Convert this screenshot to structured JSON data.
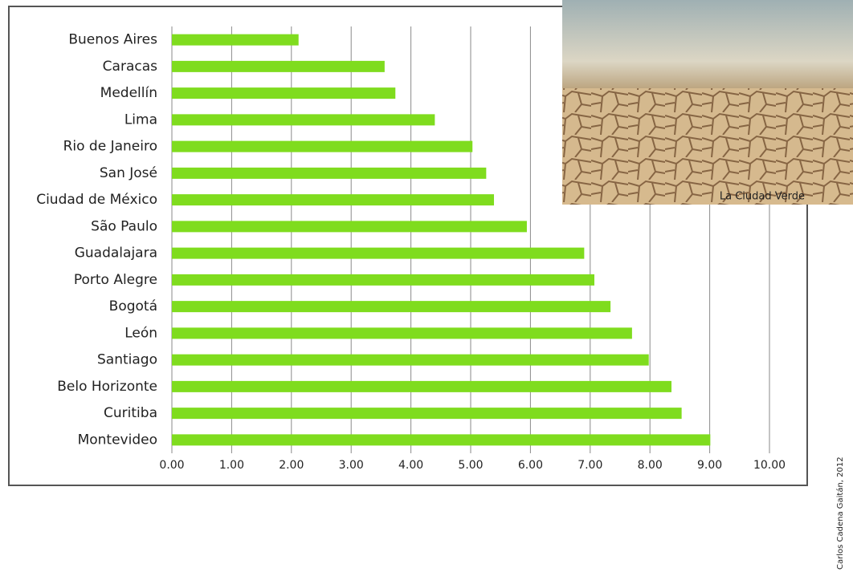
{
  "chart_data": {
    "type": "bar",
    "orientation": "horizontal",
    "categories": [
      "Buenos Aires",
      "Caracas",
      "Medellín",
      "Lima",
      "Rio de Janeiro",
      "San José",
      "Ciudad de México",
      "São Paulo",
      "Guadalajara",
      "Porto Alegre",
      "Bogotá",
      "León",
      "Santiago",
      "Belo Horizonte",
      "Curitiba",
      "Montevideo"
    ],
    "values": [
      2.12,
      3.56,
      3.74,
      4.4,
      5.03,
      5.26,
      5.39,
      5.94,
      6.9,
      7.07,
      7.34,
      7.7,
      7.98,
      8.36,
      8.53,
      9.01
    ],
    "color": "#7fdc1e",
    "xlim": [
      0,
      10
    ],
    "xticks": [
      {
        "value": 0,
        "label": "0.00"
      },
      {
        "value": 1,
        "label": "1.00"
      },
      {
        "value": 2,
        "label": "2.00"
      },
      {
        "value": 3,
        "label": "3.00"
      },
      {
        "value": 4,
        "label": "4.00"
      },
      {
        "value": 5,
        "label": "5.00"
      },
      {
        "value": 6,
        "label": "6.00"
      },
      {
        "value": 7,
        "label": "7.00"
      },
      {
        "value": 8,
        "label": "8.00"
      },
      {
        "value": 9,
        "label": "9.00"
      },
      {
        "value": 10,
        "label": "10.00"
      }
    ],
    "grid": true,
    "photo_caption": "La Ciudad Verde",
    "credit": "Carlos Cadena Gaitán, 2012"
  }
}
